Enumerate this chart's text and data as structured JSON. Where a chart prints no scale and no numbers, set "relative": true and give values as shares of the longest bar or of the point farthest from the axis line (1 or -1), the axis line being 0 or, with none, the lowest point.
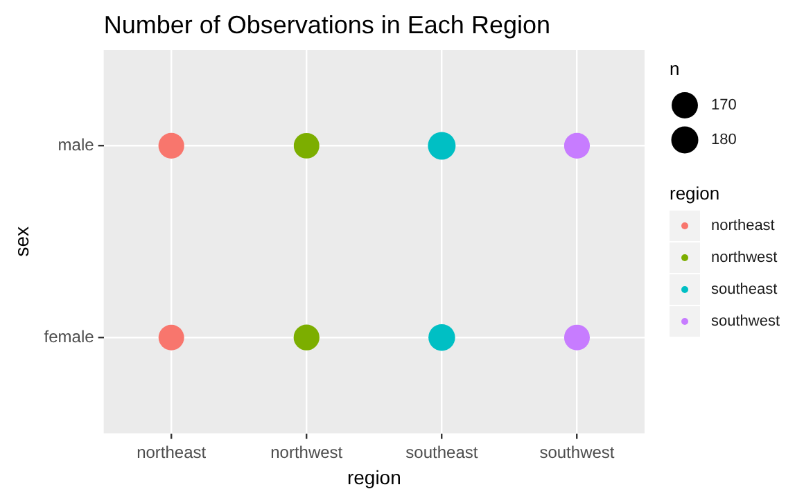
{
  "chart_data": {
    "type": "bubble",
    "title": "Number of Observations in Each Region",
    "xlabel": "region",
    "ylabel": "sex",
    "legend_title": "region",
    "annotations": [
      "n"
    ],
    "categories": [
      "northeast",
      "northwest",
      "southeast",
      "southwest"
    ],
    "y_categories": [
      "male",
      "female"
    ],
    "relative": true,
    "grid": true,
    "legend": "right",
    "size_legend": [
      170,
      180
    ],
    "series": [
      {
        "name": "northeast",
        "color": "#f8766d",
        "x": [
          "northeast",
          "northeast"
        ],
        "values": [
          1,
          0
        ],
        "sizes": [
          163,
          161
        ]
      },
      {
        "name": "northwest",
        "color": "#7cae00",
        "x": [
          "northwest",
          "northwest"
        ],
        "values": [
          1,
          0
        ],
        "sizes": [
          161,
          164
        ]
      },
      {
        "name": "southeast",
        "color": "#00bfc4",
        "x": [
          "southeast",
          "southeast"
        ],
        "values": [
          1,
          0
        ],
        "sizes": [
          189,
          175
        ]
      },
      {
        "name": "southwest",
        "color": "#c77cff",
        "x": [
          "southwest",
          "southwest"
        ],
        "values": [
          1,
          0
        ],
        "sizes": [
          163,
          162
        ]
      }
    ]
  }
}
